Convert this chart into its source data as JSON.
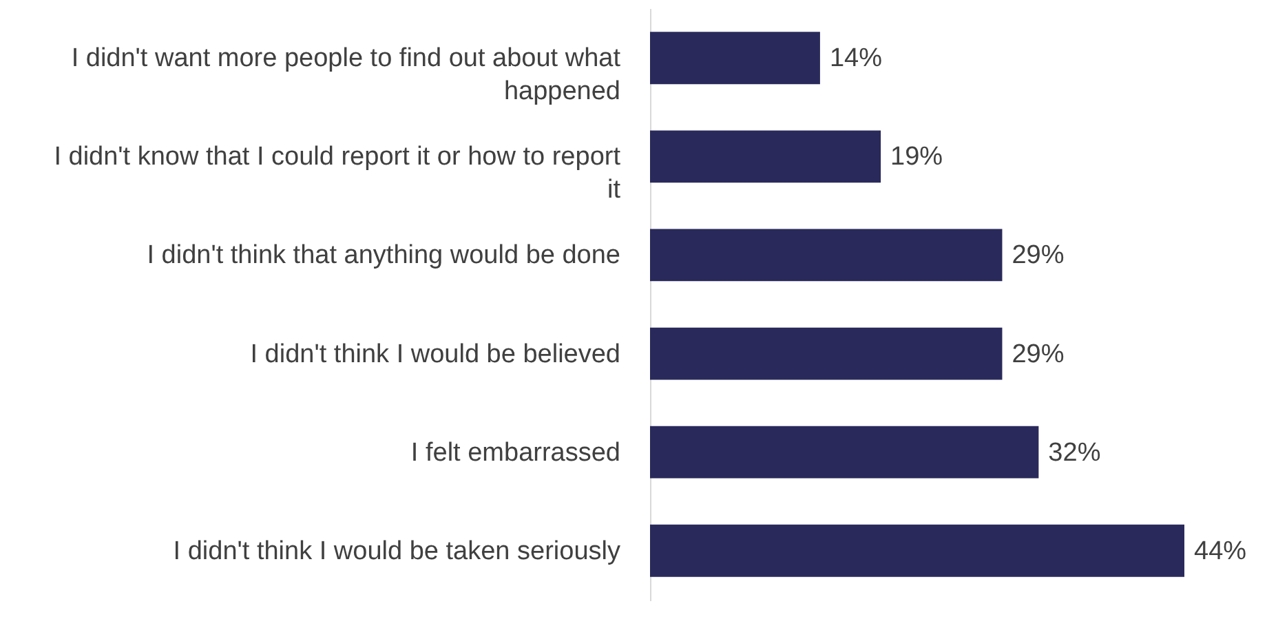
{
  "chart_data": {
    "type": "bar",
    "orientation": "horizontal",
    "xlim": [
      0,
      44
    ],
    "categories": [
      "I didn't want more people to find out about what happened",
      "I didn't know that I could report it or how to report it",
      "I didn't think that anything would be done",
      "I didn't think I would be believed",
      "I felt embarrassed",
      "I didn't think I would be taken seriously"
    ],
    "values": [
      14,
      19,
      29,
      29,
      32,
      44
    ],
    "value_labels": [
      "14%",
      "19%",
      "29%",
      "29%",
      "32%",
      "44%"
    ],
    "color": "#29295b"
  }
}
